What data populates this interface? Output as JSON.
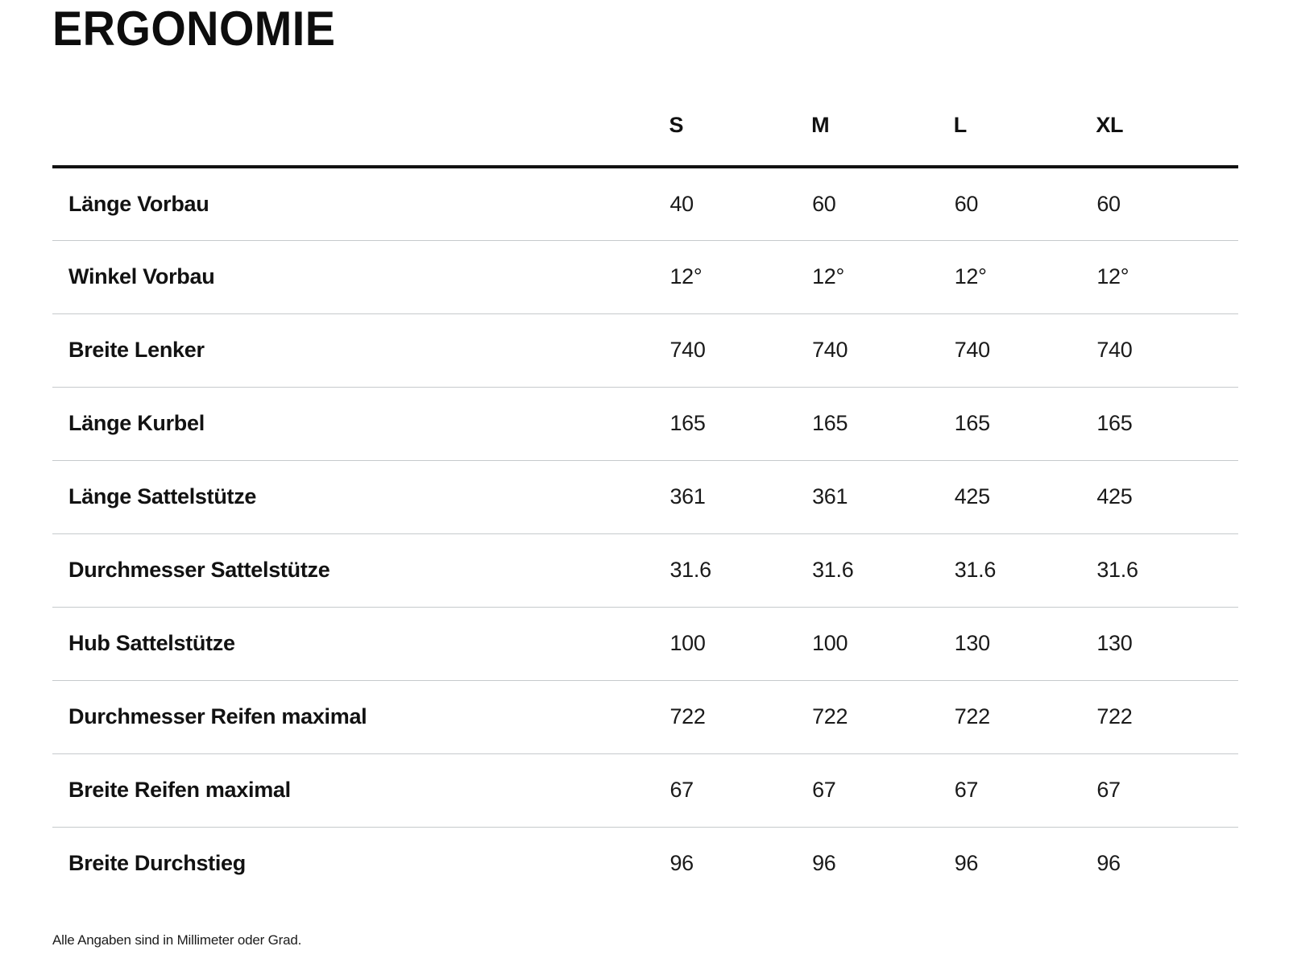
{
  "page": {
    "title": "ERGONOMIE",
    "footnote": "Alle Angaben sind in Millimeter oder Grad."
  },
  "table": {
    "size_headers": [
      "S",
      "M",
      "L",
      "XL"
    ],
    "rows": [
      {
        "label": "Länge Vorbau",
        "values": [
          "40",
          "60",
          "60",
          "60"
        ]
      },
      {
        "label": "Winkel Vorbau",
        "values": [
          "12°",
          "12°",
          "12°",
          "12°"
        ]
      },
      {
        "label": "Breite Lenker",
        "values": [
          "740",
          "740",
          "740",
          "740"
        ]
      },
      {
        "label": "Länge Kurbel",
        "values": [
          "165",
          "165",
          "165",
          "165"
        ]
      },
      {
        "label": "Länge Sattelstütze",
        "values": [
          "361",
          "361",
          "425",
          "425"
        ]
      },
      {
        "label": "Durchmesser Sattelstütze",
        "values": [
          "31.6",
          "31.6",
          "31.6",
          "31.6"
        ]
      },
      {
        "label": "Hub Sattelstütze",
        "values": [
          "100",
          "100",
          "130",
          "130"
        ]
      },
      {
        "label": "Durchmesser Reifen maximal",
        "values": [
          "722",
          "722",
          "722",
          "722"
        ]
      },
      {
        "label": "Breite Reifen maximal",
        "values": [
          "67",
          "67",
          "67",
          "67"
        ]
      },
      {
        "label": "Breite Durchstieg",
        "values": [
          "96",
          "96",
          "96",
          "96"
        ]
      }
    ]
  },
  "colors": {
    "text": "#111111",
    "header_rule": "#111111",
    "row_divider": "#c6cacc",
    "background": "#ffffff"
  }
}
